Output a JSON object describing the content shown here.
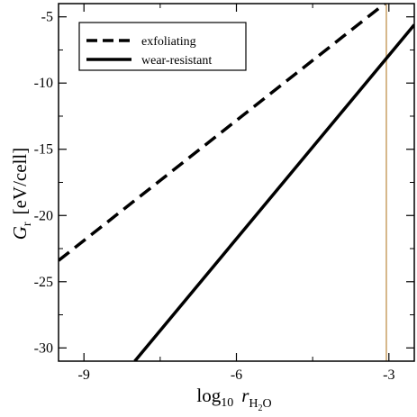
{
  "chart_data": {
    "type": "line",
    "xlabel": {
      "base": "log",
      "sub": "10",
      "var": "r",
      "var_sub": "H",
      "var_sub2": "2",
      "var_sub3": "O"
    },
    "ylabel": {
      "var": "G",
      "sub": "r",
      "unit": "[eV/cell]"
    },
    "xlim": [
      -9.5,
      -2.5
    ],
    "ylim": [
      -31,
      -4
    ],
    "xticks": [
      -9,
      -6,
      -3
    ],
    "xtick_labels": [
      "-9",
      "-6",
      "-3"
    ],
    "yticks": [
      -30,
      -25,
      -20,
      -15,
      -10,
      -5
    ],
    "ytick_labels": [
      "-30",
      "-25",
      "-20",
      "-15",
      "-10",
      "-5"
    ],
    "grid": false,
    "legend_position": "top-left",
    "series": [
      {
        "name": "exfoliating",
        "style": "dashed",
        "color": "#000000",
        "x": [
          -9.5,
          -3.08
        ],
        "y": [
          -23.4,
          -4.0
        ]
      },
      {
        "name": "wear-resistant",
        "style": "solid",
        "color": "#000000",
        "x": [
          -8.0,
          -2.5
        ],
        "y": [
          -31.0,
          -5.6
        ]
      }
    ],
    "vline": {
      "x": -3.05,
      "color": "#c8a064"
    }
  }
}
